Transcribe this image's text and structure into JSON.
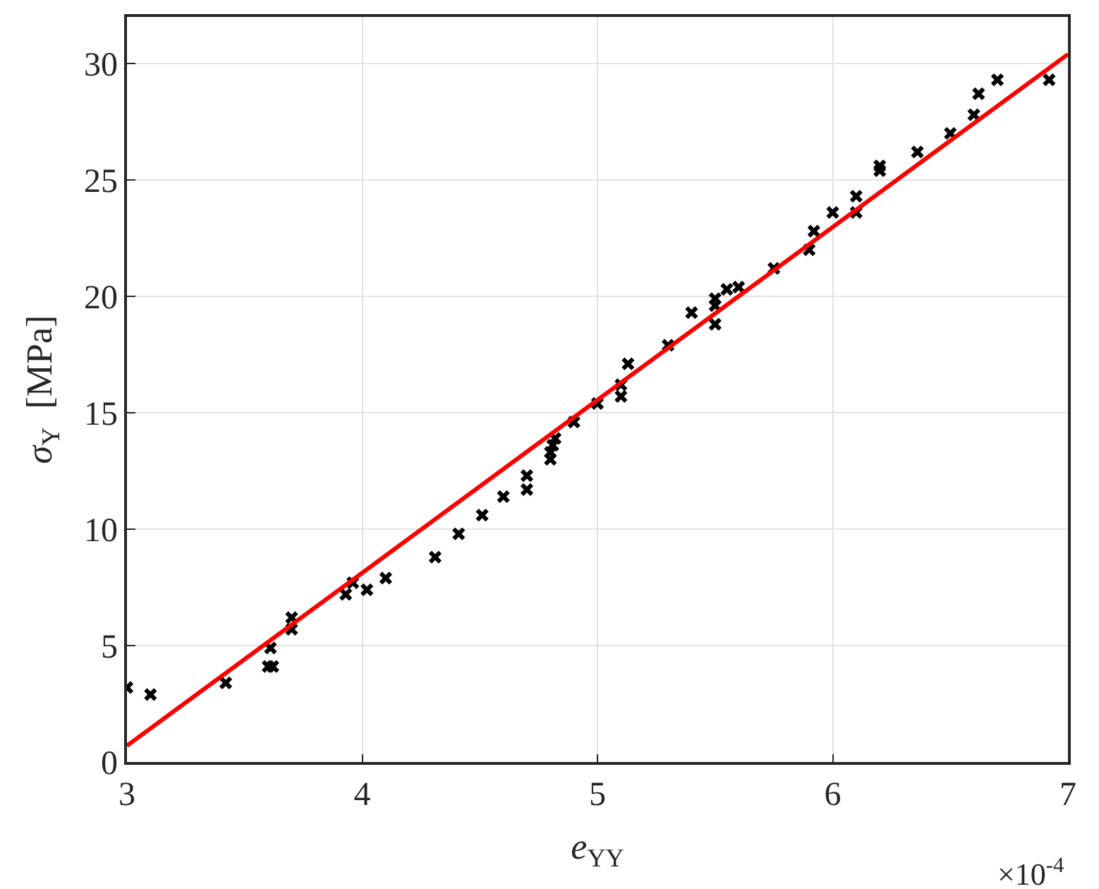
{
  "chart_data": {
    "type": "scatter",
    "xlabel": "e$_{YY}$",
    "ylabel": "σ$_{Y}$  [MPa]",
    "xlim": [
      3,
      7
    ],
    "xticks": [
      3,
      4,
      5,
      6,
      7
    ],
    "ylim": [
      0,
      32
    ],
    "yticks": [
      0,
      5,
      10,
      15,
      20,
      25,
      30
    ],
    "grid": true,
    "annotations": [
      "×10$^{-4}$"
    ],
    "series": [
      {
        "marker": "cross",
        "color": "#000000",
        "x": [
          3.0,
          3.1,
          3.42,
          3.6,
          3.62,
          3.61,
          3.7,
          3.7,
          3.93,
          3.96,
          4.02,
          4.1,
          4.31,
          4.41,
          4.51,
          4.6,
          4.7,
          4.7,
          4.8,
          4.8,
          4.81,
          4.82,
          4.9,
          5.0,
          5.1,
          5.1,
          5.13,
          5.3,
          5.4,
          5.5,
          5.5,
          5.5,
          5.55,
          5.6,
          5.75,
          5.9,
          5.92,
          6.0,
          6.1,
          6.1,
          6.2,
          6.2,
          6.36,
          6.5,
          6.6,
          6.62,
          6.7,
          6.92
        ],
        "values": [
          3.2,
          2.9,
          3.4,
          4.1,
          4.1,
          4.9,
          5.7,
          6.2,
          7.2,
          7.7,
          7.4,
          7.9,
          8.8,
          9.8,
          10.6,
          11.4,
          11.7,
          12.3,
          13.0,
          13.3,
          13.6,
          13.9,
          14.6,
          15.4,
          15.7,
          16.2,
          17.1,
          17.9,
          19.3,
          18.8,
          19.6,
          19.9,
          20.3,
          20.4,
          21.2,
          22.0,
          22.8,
          23.6,
          23.6,
          24.3,
          25.4,
          25.6,
          26.2,
          27.0,
          27.8,
          28.7,
          29.3,
          29.3
        ]
      },
      {
        "type": "line",
        "marker": "none",
        "line_style": "solid",
        "color": "#ff0000",
        "x": [
          3,
          7
        ],
        "values": [
          0.7,
          30.4
        ]
      }
    ]
  }
}
